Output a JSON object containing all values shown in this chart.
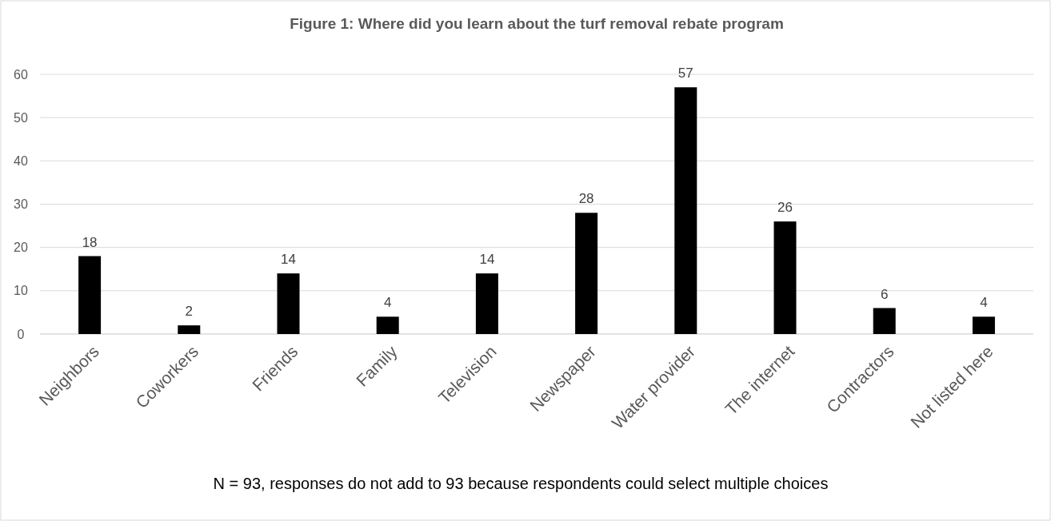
{
  "chart_data": {
    "type": "bar",
    "title": "Figure 1: Where did you learn about the turf removal rebate program",
    "categories": [
      "Neighbors",
      "Coworkers",
      "Friends",
      "Family",
      "Television",
      "Newspaper",
      "Water provider",
      "The internet",
      "Contractors",
      "Not listed here"
    ],
    "values": [
      18,
      2,
      14,
      4,
      14,
      28,
      57,
      26,
      6,
      4
    ],
    "color": "#000000",
    "ylim": [
      0,
      60
    ],
    "yticks": [
      0,
      10,
      20,
      30,
      40,
      50,
      60
    ],
    "grid": "y",
    "data_labels": true,
    "annotations": [
      "N = 93, responses do not add to 93 because respondents could select multiple choices"
    ]
  }
}
